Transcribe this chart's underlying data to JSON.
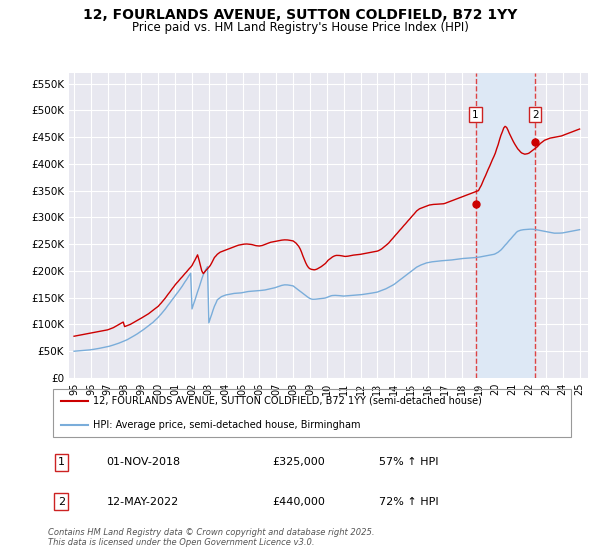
{
  "title": "12, FOURLANDS AVENUE, SUTTON COLDFIELD, B72 1YY",
  "subtitle": "Price paid vs. HM Land Registry's House Price Index (HPI)",
  "title_fontsize": 10,
  "subtitle_fontsize": 8.5,
  "ylabel_ticks": [
    "£0",
    "£50K",
    "£100K",
    "£150K",
    "£200K",
    "£250K",
    "£300K",
    "£350K",
    "£400K",
    "£450K",
    "£500K",
    "£550K"
  ],
  "ytick_values": [
    0,
    50000,
    100000,
    150000,
    200000,
    250000,
    300000,
    350000,
    400000,
    450000,
    500000,
    550000
  ],
  "ylim": [
    0,
    570000
  ],
  "xlim_start": 1994.7,
  "xlim_end": 2025.5,
  "background_color": "#ffffff",
  "plot_bg_color": "#e8e8f0",
  "grid_color": "#ffffff",
  "shade_color": "#dde8f5",
  "marker1_date": 2018.83,
  "marker1_value": 325000,
  "marker1_label": "1",
  "marker2_date": 2022.37,
  "marker2_value": 440000,
  "marker2_label": "2",
  "red_line_color": "#cc0000",
  "blue_line_color": "#7aadda",
  "marker_vline_color": "#dd4444",
  "legend_line1": "12, FOURLANDS AVENUE, SUTTON COLDFIELD, B72 1YY (semi-detached house)",
  "legend_line2": "HPI: Average price, semi-detached house, Birmingham",
  "table_row1": [
    "1",
    "01-NOV-2018",
    "£325,000",
    "57% ↑ HPI"
  ],
  "table_row2": [
    "2",
    "12-MAY-2022",
    "£440,000",
    "72% ↑ HPI"
  ],
  "footnote": "Contains HM Land Registry data © Crown copyright and database right 2025.\nThis data is licensed under the Open Government Licence v3.0.",
  "hpi_data_x": [
    1995.0,
    1995.08,
    1995.17,
    1995.25,
    1995.33,
    1995.42,
    1995.5,
    1995.58,
    1995.67,
    1995.75,
    1995.83,
    1995.92,
    1996.0,
    1996.08,
    1996.17,
    1996.25,
    1996.33,
    1996.42,
    1996.5,
    1996.58,
    1996.67,
    1996.75,
    1996.83,
    1996.92,
    1997.0,
    1997.08,
    1997.17,
    1997.25,
    1997.33,
    1997.42,
    1997.5,
    1997.58,
    1997.67,
    1997.75,
    1997.83,
    1997.92,
    1998.0,
    1998.08,
    1998.17,
    1998.25,
    1998.33,
    1998.42,
    1998.5,
    1998.58,
    1998.67,
    1998.75,
    1998.83,
    1998.92,
    1999.0,
    1999.08,
    1999.17,
    1999.25,
    1999.33,
    1999.42,
    1999.5,
    1999.58,
    1999.67,
    1999.75,
    1999.83,
    1999.92,
    2000.0,
    2000.08,
    2000.17,
    2000.25,
    2000.33,
    2000.42,
    2000.5,
    2000.58,
    2000.67,
    2000.75,
    2000.83,
    2000.92,
    2001.0,
    2001.08,
    2001.17,
    2001.25,
    2001.33,
    2001.42,
    2001.5,
    2001.58,
    2001.67,
    2001.75,
    2001.83,
    2001.92,
    2002.0,
    2002.08,
    2002.17,
    2002.25,
    2002.33,
    2002.42,
    2002.5,
    2002.58,
    2002.67,
    2002.75,
    2002.83,
    2002.92,
    2003.0,
    2003.08,
    2003.17,
    2003.25,
    2003.33,
    2003.42,
    2003.5,
    2003.58,
    2003.67,
    2003.75,
    2003.83,
    2003.92,
    2004.0,
    2004.08,
    2004.17,
    2004.25,
    2004.33,
    2004.42,
    2004.5,
    2004.58,
    2004.67,
    2004.75,
    2004.83,
    2004.92,
    2005.0,
    2005.08,
    2005.17,
    2005.25,
    2005.33,
    2005.42,
    2005.5,
    2005.58,
    2005.67,
    2005.75,
    2005.83,
    2005.92,
    2006.0,
    2006.08,
    2006.17,
    2006.25,
    2006.33,
    2006.42,
    2006.5,
    2006.58,
    2006.67,
    2006.75,
    2006.83,
    2006.92,
    2007.0,
    2007.08,
    2007.17,
    2007.25,
    2007.33,
    2007.42,
    2007.5,
    2007.58,
    2007.67,
    2007.75,
    2007.83,
    2007.92,
    2008.0,
    2008.08,
    2008.17,
    2008.25,
    2008.33,
    2008.42,
    2008.5,
    2008.58,
    2008.67,
    2008.75,
    2008.83,
    2008.92,
    2009.0,
    2009.08,
    2009.17,
    2009.25,
    2009.33,
    2009.42,
    2009.5,
    2009.58,
    2009.67,
    2009.75,
    2009.83,
    2009.92,
    2010.0,
    2010.08,
    2010.17,
    2010.25,
    2010.33,
    2010.42,
    2010.5,
    2010.58,
    2010.67,
    2010.75,
    2010.83,
    2010.92,
    2011.0,
    2011.08,
    2011.17,
    2011.25,
    2011.33,
    2011.42,
    2011.5,
    2011.58,
    2011.67,
    2011.75,
    2011.83,
    2011.92,
    2012.0,
    2012.08,
    2012.17,
    2012.25,
    2012.33,
    2012.42,
    2012.5,
    2012.58,
    2012.67,
    2012.75,
    2012.83,
    2012.92,
    2013.0,
    2013.08,
    2013.17,
    2013.25,
    2013.33,
    2013.42,
    2013.5,
    2013.58,
    2013.67,
    2013.75,
    2013.83,
    2013.92,
    2014.0,
    2014.08,
    2014.17,
    2014.25,
    2014.33,
    2014.42,
    2014.5,
    2014.58,
    2014.67,
    2014.75,
    2014.83,
    2014.92,
    2015.0,
    2015.08,
    2015.17,
    2015.25,
    2015.33,
    2015.42,
    2015.5,
    2015.58,
    2015.67,
    2015.75,
    2015.83,
    2015.92,
    2016.0,
    2016.08,
    2016.17,
    2016.25,
    2016.33,
    2016.42,
    2016.5,
    2016.58,
    2016.67,
    2016.75,
    2016.83,
    2016.92,
    2017.0,
    2017.08,
    2017.17,
    2017.25,
    2017.33,
    2017.42,
    2017.5,
    2017.58,
    2017.67,
    2017.75,
    2017.83,
    2017.92,
    2018.0,
    2018.08,
    2018.17,
    2018.25,
    2018.33,
    2018.42,
    2018.5,
    2018.58,
    2018.67,
    2018.75,
    2018.83,
    2018.92,
    2019.0,
    2019.08,
    2019.17,
    2019.25,
    2019.33,
    2019.42,
    2019.5,
    2019.58,
    2019.67,
    2019.75,
    2019.83,
    2019.92,
    2020.0,
    2020.08,
    2020.17,
    2020.25,
    2020.33,
    2020.42,
    2020.5,
    2020.58,
    2020.67,
    2020.75,
    2020.83,
    2020.92,
    2021.0,
    2021.08,
    2021.17,
    2021.25,
    2021.33,
    2021.42,
    2021.5,
    2021.58,
    2021.67,
    2021.75,
    2021.83,
    2021.92,
    2022.0,
    2022.08,
    2022.17,
    2022.25,
    2022.33,
    2022.42,
    2022.5,
    2022.58,
    2022.67,
    2022.75,
    2022.83,
    2022.92,
    2023.0,
    2023.08,
    2023.17,
    2023.25,
    2023.33,
    2023.42,
    2023.5,
    2023.58,
    2023.67,
    2023.75,
    2023.83,
    2023.92,
    2024.0,
    2024.08,
    2024.17,
    2024.25,
    2024.33,
    2024.42,
    2024.5,
    2024.58,
    2024.67,
    2024.75,
    2024.83,
    2024.92,
    2025.0
  ],
  "hpi_data_y": [
    50000,
    50200,
    50400,
    50600,
    50800,
    51000,
    51200,
    51500,
    51800,
    52000,
    52200,
    52500,
    52800,
    53200,
    53600,
    54000,
    54400,
    54900,
    55400,
    55900,
    56500,
    57000,
    57500,
    58000,
    58500,
    59200,
    60000,
    60800,
    61600,
    62500,
    63400,
    64300,
    65200,
    66200,
    67200,
    68200,
    69200,
    70500,
    71800,
    73200,
    74600,
    76100,
    77600,
    79200,
    80800,
    82400,
    84100,
    85800,
    87500,
    89500,
    91500,
    93500,
    95500,
    97500,
    99500,
    101500,
    103500,
    106000,
    108500,
    111000,
    113500,
    116500,
    119500,
    122500,
    125500,
    129000,
    132500,
    136000,
    139500,
    143000,
    146500,
    150000,
    153500,
    157000,
    160500,
    164000,
    167500,
    171500,
    175500,
    179500,
    183500,
    187500,
    191500,
    195500,
    129000,
    137000,
    145000,
    153000,
    161000,
    169000,
    177000,
    185000,
    193000,
    198000,
    203000,
    208000,
    103000,
    111000,
    119000,
    127000,
    134000,
    140000,
    146000,
    148000,
    150000,
    152000,
    153000,
    154000,
    155000,
    155500,
    156000,
    156500,
    157000,
    157500,
    158000,
    158200,
    158400,
    158600,
    158800,
    159000,
    159500,
    160000,
    160500,
    161000,
    161500,
    161800,
    162000,
    162200,
    162400,
    162600,
    162800,
    163000,
    163200,
    163500,
    163800,
    164100,
    164400,
    165000,
    165600,
    166200,
    166800,
    167400,
    168000,
    168600,
    169500,
    170400,
    171300,
    172200,
    173000,
    173500,
    174000,
    174000,
    173800,
    173500,
    173000,
    172500,
    172000,
    170000,
    168000,
    166000,
    164000,
    162000,
    160000,
    158000,
    156000,
    154000,
    152000,
    150000,
    148500,
    147500,
    147000,
    147000,
    147200,
    147500,
    147800,
    148000,
    148200,
    148500,
    149000,
    149500,
    150500,
    151500,
    152500,
    153500,
    154000,
    154200,
    154300,
    154200,
    154000,
    153800,
    153500,
    153200,
    153000,
    153200,
    153400,
    153600,
    153800,
    154000,
    154200,
    154400,
    154600,
    154800,
    155000,
    155200,
    155500,
    155800,
    156200,
    156600,
    157000,
    157400,
    157800,
    158200,
    158600,
    159000,
    159500,
    160000,
    160500,
    161500,
    162500,
    163500,
    164500,
    165500,
    166500,
    167800,
    169100,
    170500,
    172000,
    173500,
    175000,
    177000,
    179000,
    181000,
    183000,
    185000,
    187000,
    189000,
    191000,
    193000,
    195000,
    197000,
    199000,
    201000,
    203000,
    205000,
    207000,
    208500,
    210000,
    211000,
    212000,
    213000,
    214000,
    215000,
    215500,
    216000,
    216500,
    217000,
    217300,
    217600,
    217900,
    218200,
    218500,
    218800,
    219000,
    219200,
    219400,
    219600,
    219800,
    220000,
    220200,
    220500,
    220800,
    221100,
    221400,
    221800,
    222200,
    222600,
    223000,
    223200,
    223400,
    223600,
    223800,
    224000,
    224200,
    224400,
    224600,
    224800,
    225000,
    225200,
    225500,
    226000,
    226500,
    227000,
    227500,
    228000,
    228500,
    229000,
    229500,
    230000,
    230500,
    231000,
    232000,
    233500,
    235000,
    237000,
    239000,
    242000,
    245000,
    248000,
    251000,
    254000,
    257000,
    260000,
    263000,
    266000,
    269000,
    272000,
    274000,
    275000,
    276000,
    276500,
    277000,
    277200,
    277400,
    277600,
    277800,
    278000,
    278000,
    277800,
    277500,
    277000,
    276500,
    276000,
    275500,
    275000,
    274500,
    274000,
    273500,
    273000,
    272500,
    272000,
    271500,
    271000,
    270500,
    270500,
    270500,
    270500,
    270600,
    270800,
    271000,
    271500,
    272000,
    272500,
    273000,
    273500,
    274000,
    274500,
    275000,
    275500,
    276000,
    276500,
    277000
  ],
  "red_data_x": [
    1995.0,
    1995.08,
    1995.17,
    1995.25,
    1995.33,
    1995.42,
    1995.5,
    1995.58,
    1995.67,
    1995.75,
    1995.83,
    1995.92,
    1996.0,
    1996.08,
    1996.17,
    1996.25,
    1996.33,
    1996.42,
    1996.5,
    1996.58,
    1996.67,
    1996.75,
    1996.83,
    1996.92,
    1997.0,
    1997.08,
    1997.17,
    1997.25,
    1997.33,
    1997.42,
    1997.5,
    1997.58,
    1997.67,
    1997.75,
    1997.83,
    1997.92,
    1998.0,
    1998.08,
    1998.17,
    1998.25,
    1998.33,
    1998.42,
    1998.5,
    1998.58,
    1998.67,
    1998.75,
    1998.83,
    1998.92,
    1999.0,
    1999.08,
    1999.17,
    1999.25,
    1999.33,
    1999.42,
    1999.5,
    1999.58,
    1999.67,
    1999.75,
    1999.83,
    1999.92,
    2000.0,
    2000.08,
    2000.17,
    2000.25,
    2000.33,
    2000.42,
    2000.5,
    2000.58,
    2000.67,
    2000.75,
    2000.83,
    2000.92,
    2001.0,
    2001.08,
    2001.17,
    2001.25,
    2001.33,
    2001.42,
    2001.5,
    2001.58,
    2001.67,
    2001.75,
    2001.83,
    2001.92,
    2002.0,
    2002.08,
    2002.17,
    2002.25,
    2002.33,
    2002.42,
    2002.5,
    2002.58,
    2002.67,
    2002.75,
    2002.83,
    2002.92,
    2003.0,
    2003.08,
    2003.17,
    2003.25,
    2003.33,
    2003.42,
    2003.5,
    2003.58,
    2003.67,
    2003.75,
    2003.83,
    2003.92,
    2004.0,
    2004.08,
    2004.17,
    2004.25,
    2004.33,
    2004.42,
    2004.5,
    2004.58,
    2004.67,
    2004.75,
    2004.83,
    2004.92,
    2005.0,
    2005.08,
    2005.17,
    2005.25,
    2005.33,
    2005.42,
    2005.5,
    2005.58,
    2005.67,
    2005.75,
    2005.83,
    2005.92,
    2006.0,
    2006.08,
    2006.17,
    2006.25,
    2006.33,
    2006.42,
    2006.5,
    2006.58,
    2006.67,
    2006.75,
    2006.83,
    2006.92,
    2007.0,
    2007.08,
    2007.17,
    2007.25,
    2007.33,
    2007.42,
    2007.5,
    2007.58,
    2007.67,
    2007.75,
    2007.83,
    2007.92,
    2008.0,
    2008.08,
    2008.17,
    2008.25,
    2008.33,
    2008.42,
    2008.5,
    2008.58,
    2008.67,
    2008.75,
    2008.83,
    2008.92,
    2009.0,
    2009.08,
    2009.17,
    2009.25,
    2009.33,
    2009.42,
    2009.5,
    2009.58,
    2009.67,
    2009.75,
    2009.83,
    2009.92,
    2010.0,
    2010.08,
    2010.17,
    2010.25,
    2010.33,
    2010.42,
    2010.5,
    2010.58,
    2010.67,
    2010.75,
    2010.83,
    2010.92,
    2011.0,
    2011.08,
    2011.17,
    2011.25,
    2011.33,
    2011.42,
    2011.5,
    2011.58,
    2011.67,
    2011.75,
    2011.83,
    2011.92,
    2012.0,
    2012.08,
    2012.17,
    2012.25,
    2012.33,
    2012.42,
    2012.5,
    2012.58,
    2012.67,
    2012.75,
    2012.83,
    2012.92,
    2013.0,
    2013.08,
    2013.17,
    2013.25,
    2013.33,
    2013.42,
    2013.5,
    2013.58,
    2013.67,
    2013.75,
    2013.83,
    2013.92,
    2014.0,
    2014.08,
    2014.17,
    2014.25,
    2014.33,
    2014.42,
    2014.5,
    2014.58,
    2014.67,
    2014.75,
    2014.83,
    2014.92,
    2015.0,
    2015.08,
    2015.17,
    2015.25,
    2015.33,
    2015.42,
    2015.5,
    2015.58,
    2015.67,
    2015.75,
    2015.83,
    2015.92,
    2016.0,
    2016.08,
    2016.17,
    2016.25,
    2016.33,
    2016.42,
    2016.5,
    2016.58,
    2016.67,
    2016.75,
    2016.83,
    2016.92,
    2017.0,
    2017.08,
    2017.17,
    2017.25,
    2017.33,
    2017.42,
    2017.5,
    2017.58,
    2017.67,
    2017.75,
    2017.83,
    2017.92,
    2018.0,
    2018.08,
    2018.17,
    2018.25,
    2018.33,
    2018.42,
    2018.5,
    2018.58,
    2018.67,
    2018.75,
    2018.83,
    2018.92,
    2019.0,
    2019.08,
    2019.17,
    2019.25,
    2019.33,
    2019.42,
    2019.5,
    2019.58,
    2019.67,
    2019.75,
    2019.83,
    2019.92,
    2020.0,
    2020.08,
    2020.17,
    2020.25,
    2020.33,
    2020.42,
    2020.5,
    2020.58,
    2020.67,
    2020.75,
    2020.83,
    2020.92,
    2021.0,
    2021.08,
    2021.17,
    2021.25,
    2021.33,
    2021.42,
    2021.5,
    2021.58,
    2021.67,
    2021.75,
    2021.83,
    2021.92,
    2022.0,
    2022.08,
    2022.17,
    2022.25,
    2022.33,
    2022.42,
    2022.5,
    2022.58,
    2022.67,
    2022.75,
    2022.83,
    2022.92,
    2023.0,
    2023.08,
    2023.17,
    2023.25,
    2023.33,
    2023.42,
    2023.5,
    2023.58,
    2023.67,
    2023.75,
    2023.83,
    2023.92,
    2024.0,
    2024.08,
    2024.17,
    2024.25,
    2024.33,
    2024.42,
    2024.5,
    2024.58,
    2024.67,
    2024.75,
    2024.83,
    2024.92,
    2025.0
  ],
  "red_data_y": [
    78000,
    78500,
    79000,
    79500,
    80000,
    80500,
    81000,
    81500,
    82000,
    82500,
    83000,
    83500,
    84000,
    84500,
    85000,
    85500,
    86000,
    86500,
    87000,
    87500,
    88000,
    88500,
    89000,
    89500,
    90000,
    91000,
    92000,
    93000,
    94000,
    95500,
    97000,
    98500,
    100000,
    101500,
    103000,
    104500,
    96000,
    97000,
    98000,
    99000,
    100000,
    101500,
    103000,
    104500,
    106000,
    107500,
    109000,
    110500,
    112000,
    113500,
    115000,
    116500,
    118000,
    120000,
    122000,
    124000,
    126000,
    128000,
    130000,
    132000,
    134000,
    137000,
    140000,
    143000,
    146000,
    149500,
    153000,
    156500,
    160000,
    163500,
    167000,
    170500,
    174000,
    177000,
    180000,
    183000,
    186000,
    189000,
    192000,
    195000,
    198000,
    201000,
    204000,
    207000,
    210000,
    215000,
    220000,
    225000,
    230000,
    220000,
    210000,
    200000,
    195000,
    198000,
    201000,
    204000,
    207000,
    210000,
    215000,
    220000,
    225000,
    228000,
    231000,
    233000,
    235000,
    236000,
    237000,
    238000,
    239000,
    240000,
    241000,
    242000,
    243000,
    244000,
    245000,
    246000,
    247000,
    248000,
    248500,
    249000,
    249500,
    250000,
    250200,
    250300,
    250100,
    249800,
    249500,
    249000,
    248200,
    247500,
    247000,
    246700,
    246500,
    247000,
    247500,
    248500,
    249500,
    250500,
    251500,
    252500,
    253500,
    254000,
    254500,
    255000,
    255500,
    256000,
    256500,
    257000,
    257500,
    257800,
    258000,
    258000,
    257800,
    257500,
    257000,
    256500,
    256000,
    254000,
    252000,
    249000,
    246000,
    241000,
    235000,
    228000,
    221000,
    215000,
    210000,
    206000,
    204000,
    203000,
    202500,
    202000,
    202500,
    203500,
    205000,
    206500,
    208000,
    210000,
    212000,
    214000,
    217000,
    220000,
    222000,
    224000,
    226000,
    227500,
    228500,
    229000,
    229000,
    228800,
    228500,
    228000,
    227500,
    227000,
    227200,
    227500,
    228000,
    228500,
    229000,
    229500,
    229800,
    230000,
    230200,
    230500,
    231000,
    231500,
    232000,
    232500,
    233000,
    233500,
    234000,
    234500,
    235000,
    235500,
    236000,
    236500,
    237000,
    238000,
    239500,
    241000,
    243000,
    245000,
    247000,
    249500,
    252000,
    255000,
    258000,
    261000,
    264000,
    267000,
    270000,
    273000,
    276000,
    279000,
    282000,
    285000,
    288000,
    291000,
    294000,
    297000,
    300000,
    303000,
    306000,
    309000,
    312000,
    314000,
    316000,
    317000,
    318000,
    319000,
    320000,
    321000,
    322000,
    323000,
    323500,
    324000,
    324200,
    324300,
    324500,
    324700,
    325000,
    325000,
    325200,
    325400,
    326000,
    327000,
    328000,
    329000,
    330000,
    331000,
    332000,
    333000,
    334000,
    335000,
    336000,
    337000,
    338000,
    339000,
    340000,
    341000,
    342000,
    343000,
    344000,
    345000,
    346000,
    347000,
    348000,
    349000,
    350000,
    355000,
    360000,
    366000,
    372000,
    378000,
    384000,
    390000,
    396000,
    402000,
    408000,
    414000,
    420000,
    428000,
    436000,
    445000,
    453000,
    460000,
    467000,
    470000,
    468000,
    463000,
    457000,
    451000,
    446000,
    441000,
    436000,
    432000,
    428000,
    425000,
    422000,
    420000,
    419000,
    418000,
    418500,
    419000,
    420000,
    422000,
    424000,
    426000,
    428000,
    430000,
    432000,
    435000,
    438000,
    440000,
    442000,
    444000,
    445000,
    446000,
    447000,
    448000,
    448500,
    449000,
    449500,
    450000,
    450500,
    451000,
    451500,
    452000,
    453000,
    454000,
    455000,
    456000,
    457000,
    458000,
    459000,
    460000,
    461000,
    462000,
    463000,
    464000,
    465000
  ]
}
